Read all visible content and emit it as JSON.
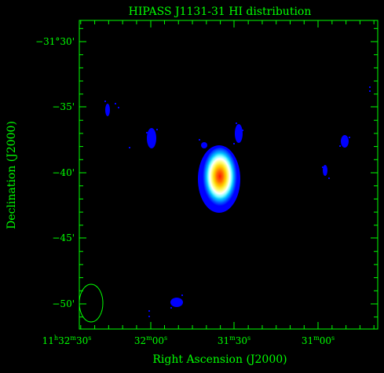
{
  "title": "HIPASS J1131-31   HI distribution",
  "xlabel": "Right Ascension (J2000)",
  "ylabel": "Declination (J2000)",
  "colors": {
    "background": "#000000",
    "frame": "#00ff00",
    "text": "#00ff00",
    "emission_low": "#0000ff",
    "emission_high": "#ff2000"
  },
  "x_ticks": [
    {
      "h": "11",
      "m": "32",
      "s": "30",
      "label": "11h32m30s"
    },
    {
      "m": "32",
      "s": "00",
      "label": "32m00s"
    },
    {
      "m": "31",
      "s": "30",
      "label": "31m30s"
    },
    {
      "m": "31",
      "s": "00",
      "label": "31m00s"
    }
  ],
  "y_ticks": [
    {
      "label": "−31°30'"
    },
    {
      "label": "−35'"
    },
    {
      "label": "−40'"
    },
    {
      "label": "−45'"
    },
    {
      "label": "−50'"
    }
  ],
  "beam": "ellipse",
  "main_source": "elliptical bright HI source with red core, yellow/green/cyan rings and blue outer halo"
}
